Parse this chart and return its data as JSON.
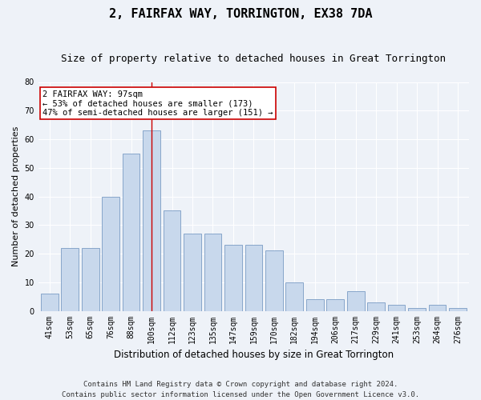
{
  "title": "2, FAIRFAX WAY, TORRINGTON, EX38 7DA",
  "subtitle": "Size of property relative to detached houses in Great Torrington",
  "xlabel": "Distribution of detached houses by size in Great Torrington",
  "ylabel": "Number of detached properties",
  "categories": [
    "41sqm",
    "53sqm",
    "65sqm",
    "76sqm",
    "88sqm",
    "100sqm",
    "112sqm",
    "123sqm",
    "135sqm",
    "147sqm",
    "159sqm",
    "170sqm",
    "182sqm",
    "194sqm",
    "206sqm",
    "217sqm",
    "229sqm",
    "241sqm",
    "253sqm",
    "264sqm",
    "276sqm"
  ],
  "values": [
    6,
    22,
    22,
    40,
    55,
    63,
    35,
    27,
    27,
    23,
    23,
    21,
    10,
    4,
    4,
    7,
    3,
    2,
    1,
    2,
    1
  ],
  "bar_color": "#c8d8ec",
  "bar_edge_color": "#7a9cc4",
  "ylim": [
    0,
    80
  ],
  "yticks": [
    0,
    10,
    20,
    30,
    40,
    50,
    60,
    70,
    80
  ],
  "property_label": "2 FAIRFAX WAY: 97sqm",
  "annotation_line1": "← 53% of detached houses are smaller (173)",
  "annotation_line2": "47% of semi-detached houses are larger (151) →",
  "vline_color": "#cc0000",
  "annotation_box_color": "#ffffff",
  "annotation_border_color": "#cc0000",
  "footer1": "Contains HM Land Registry data © Crown copyright and database right 2024.",
  "footer2": "Contains public sector information licensed under the Open Government Licence v3.0.",
  "background_color": "#eef2f8",
  "grid_color": "#ffffff",
  "title_fontsize": 11,
  "subtitle_fontsize": 9,
  "ylabel_fontsize": 8,
  "xlabel_fontsize": 8.5,
  "tick_fontsize": 7,
  "annot_fontsize": 7.5,
  "footer_fontsize": 6.5
}
